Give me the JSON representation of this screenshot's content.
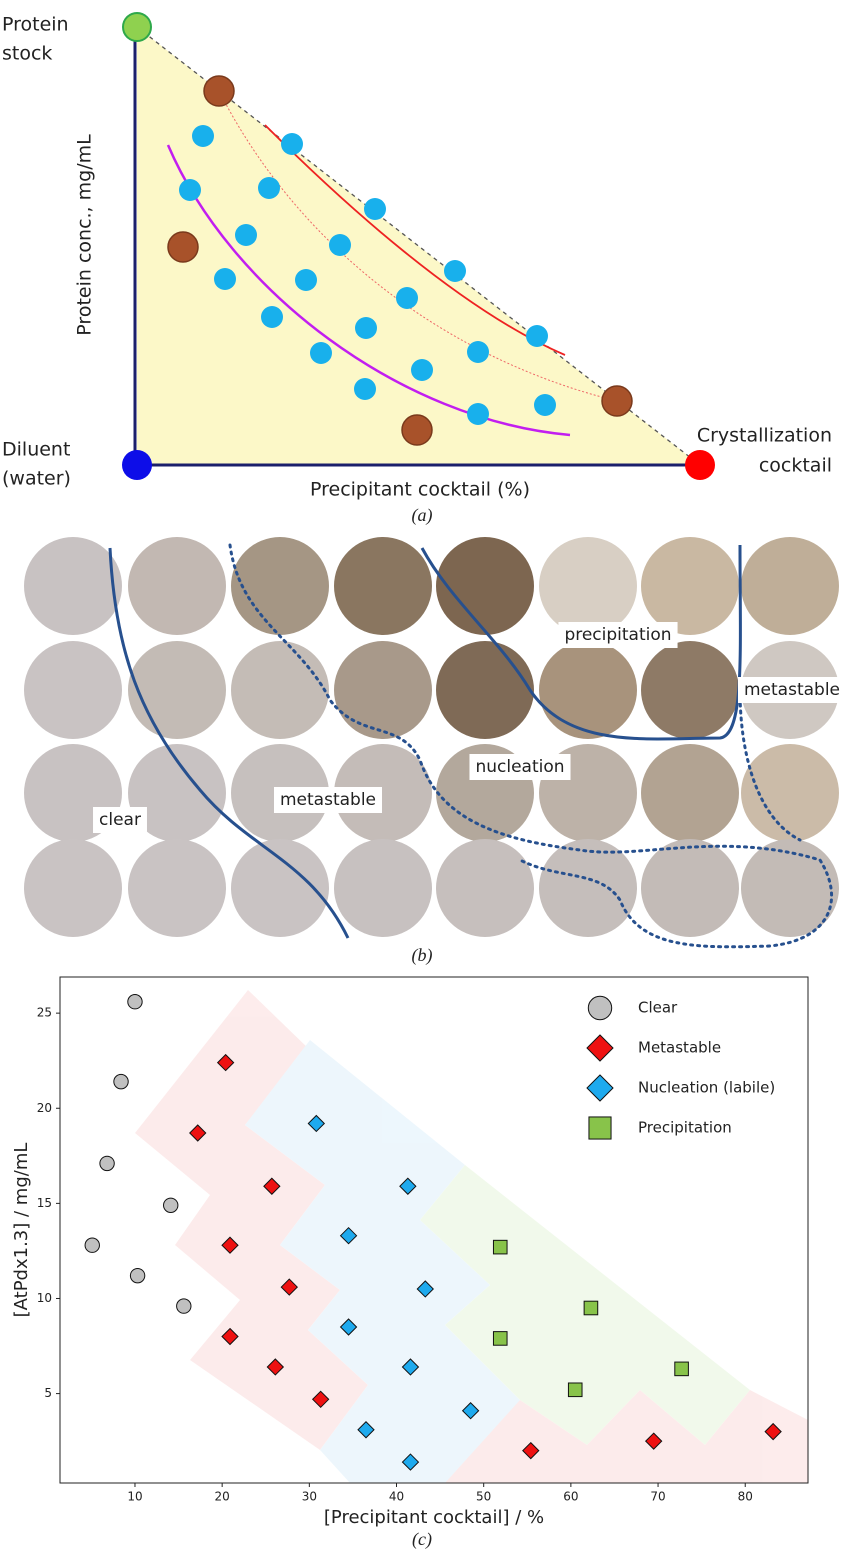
{
  "panel_a": {
    "top_label": [
      "Protein",
      "stock"
    ],
    "y_label": "Protein conc., mg/mL",
    "bottom_left_label": [
      "Diluent",
      "(water)"
    ],
    "x_label": "Precipitant cocktail (%)",
    "bottom_right_label": [
      "Crystallization",
      "cocktail"
    ],
    "caption": "(a)"
  },
  "panel_b": {
    "labels": [
      "clear",
      "metastable",
      "nucleation",
      "precipitation",
      "metastable"
    ],
    "caption": "(b)"
  },
  "chart_data": {
    "type": "scatter",
    "caption": "(c)",
    "x_label": "[Precipitant cocktail] / %",
    "y_label": "[AtPdx1.3] / mg/mL",
    "xlim": [
      1.4,
      87.2
    ],
    "ylim": [
      0.3,
      26.9
    ],
    "xticks": [
      10,
      20,
      30,
      40,
      50,
      60,
      70,
      80
    ],
    "yticks": [
      5,
      10,
      15,
      20,
      25
    ],
    "legend": "upper right",
    "series": [
      {
        "name": "Clear",
        "color": "#c0c0c0",
        "marker": "circle",
        "x": [
          10.0,
          8.4,
          6.8,
          14.1,
          5.1,
          10.3,
          15.6
        ],
        "values": [
          25.6,
          21.4,
          17.1,
          14.9,
          12.8,
          11.2,
          9.6
        ]
      },
      {
        "name": "Metastable",
        "color": "#ee1111",
        "marker": "diamond",
        "x": [
          20.4,
          17.2,
          25.7,
          20.9,
          27.7,
          20.9,
          26.1,
          31.3,
          55.4,
          69.5,
          83.2
        ],
        "values": [
          22.4,
          18.7,
          15.9,
          12.8,
          10.6,
          8.0,
          6.4,
          4.7,
          2.0,
          2.5,
          3.0
        ]
      },
      {
        "name": "Nucleation (labile)",
        "color": "#1eaaee",
        "marker": "diamond",
        "x": [
          30.8,
          41.3,
          34.5,
          43.3,
          34.5,
          41.6,
          48.5,
          36.5,
          41.6
        ],
        "values": [
          19.2,
          15.9,
          13.3,
          10.5,
          8.5,
          6.4,
          4.1,
          3.1,
          1.4
        ]
      },
      {
        "name": "Precipitation",
        "color": "#88c34a",
        "marker": "square",
        "x": [
          51.9,
          62.3,
          51.9,
          72.7,
          60.5
        ],
        "values": [
          12.7,
          9.5,
          7.9,
          6.3,
          5.2
        ]
      }
    ]
  }
}
